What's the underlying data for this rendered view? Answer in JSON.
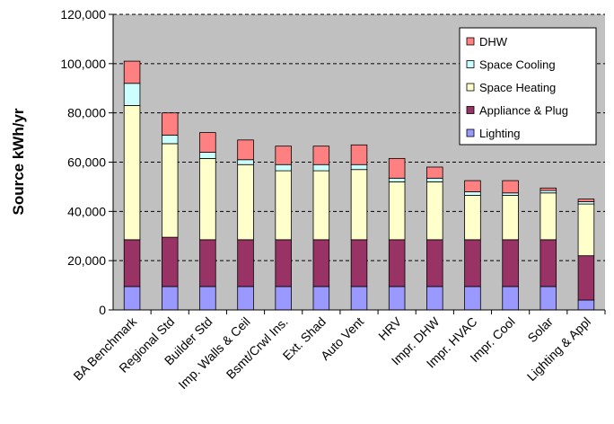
{
  "chart_data": {
    "type": "bar",
    "stacked": true,
    "title": "",
    "xlabel": "",
    "ylabel": "Source kWh/yr",
    "ylim": [
      0,
      120000
    ],
    "yticks": [
      "0",
      "20,000",
      "40,000",
      "60,000",
      "80,000",
      "100,000",
      "120,000"
    ],
    "grid": true,
    "legend_position": "top-right",
    "categories": [
      "BA Benchmark",
      "Regional Std",
      "Builder Std",
      "Imp. Walls & Ceil",
      "Bsmt/Crwl Ins.",
      "Ext. Shad",
      "Auto Vent",
      "HRV",
      "Impr. DHW",
      "Impr. HVAC",
      "Impr. Cool",
      "Solar",
      "Lighting & Appl"
    ],
    "series": [
      {
        "name": "Lighting",
        "color": "#9999ff",
        "values": [
          9500,
          9500,
          9500,
          9500,
          9500,
          9500,
          9500,
          9500,
          9500,
          9500,
          9500,
          9500,
          4000
        ]
      },
      {
        "name": "Appliance & Plug",
        "color": "#993366",
        "values": [
          19000,
          20000,
          19000,
          19000,
          19000,
          19000,
          19000,
          19000,
          19000,
          19000,
          19000,
          19000,
          18000
        ]
      },
      {
        "name": "Space Heating",
        "color": "#ffffcc",
        "values": [
          54500,
          38000,
          33000,
          30500,
          28000,
          28000,
          28500,
          23500,
          23500,
          18000,
          18000,
          19000,
          21000
        ]
      },
      {
        "name": "Space Cooling",
        "color": "#ccffff",
        "values": [
          9000,
          3500,
          2500,
          2000,
          2500,
          2500,
          2000,
          1500,
          1500,
          1500,
          1000,
          1000,
          1000
        ]
      },
      {
        "name": "DHW",
        "color": "#ff8080",
        "values": [
          9000,
          9000,
          8000,
          8000,
          7500,
          7500,
          8000,
          8000,
          4500,
          4500,
          5000,
          1000,
          1000
        ]
      }
    ]
  }
}
